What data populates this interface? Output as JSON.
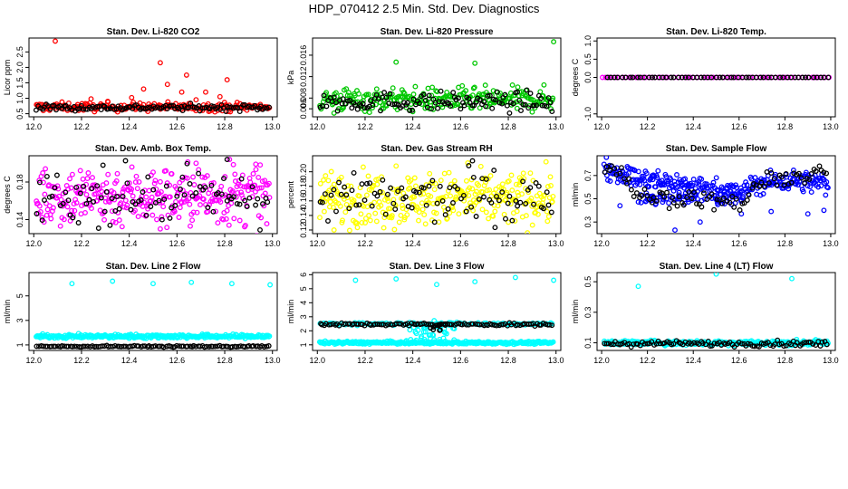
{
  "figure": {
    "title": "HDP_070412  2.5 Min. Std. Dev. Diagnostics"
  },
  "chart_data": [
    {
      "type": "scatter",
      "title": "Stan. Dev. Li-820 CO2",
      "ylabel": "Licor ppm",
      "xlim": [
        11.98,
        13.02
      ],
      "ylim": [
        0.4,
        2.95
      ],
      "xticks": [
        "12.0",
        "12.2",
        "12.4",
        "12.6",
        "12.8",
        "13.0"
      ],
      "xtick_values": [
        12.0,
        12.2,
        12.4,
        12.6,
        12.8,
        13.0
      ],
      "yticks": [
        "0.5",
        "1.0",
        "1.5",
        "2.0",
        "2.5"
      ],
      "ytick_values": [
        0.5,
        1.0,
        1.5,
        2.0,
        2.5
      ],
      "series": [
        {
          "name": "primary",
          "color": "#ff0000",
          "x_range": [
            12.01,
            12.99
          ],
          "n": 210,
          "center": 0.72,
          "spread": 0.07,
          "noise": 0.07,
          "outliers": [
            [
              12.09,
              2.85
            ],
            [
              12.41,
              1.02
            ],
            [
              12.46,
              1.3
            ],
            [
              12.53,
              2.15
            ],
            [
              12.56,
              1.45
            ],
            [
              12.62,
              1.2
            ],
            [
              12.64,
              1.75
            ],
            [
              12.68,
              0.95
            ],
            [
              12.72,
              1.2
            ],
            [
              12.78,
              1.05
            ],
            [
              12.81,
              1.6
            ],
            [
              12.24,
              0.98
            ],
            [
              12.31,
              0.9
            ]
          ]
        },
        {
          "name": "secondary",
          "color": "#000000",
          "x_range": [
            12.01,
            12.99
          ],
          "n": 120,
          "center": 0.7,
          "spread": 0.05,
          "noise": 0.05,
          "outliers": []
        }
      ]
    },
    {
      "type": "scatter",
      "title": "Stan. Dev. Li-820 Pressure",
      "ylabel": "kPa",
      "xlim": [
        11.98,
        13.02
      ],
      "ylim": [
        0.0045,
        0.0192
      ],
      "xticks": [
        "12.0",
        "12.2",
        "12.4",
        "12.6",
        "12.8",
        "13.0"
      ],
      "xtick_values": [
        12.0,
        12.2,
        12.4,
        12.6,
        12.8,
        13.0
      ],
      "yticks": [
        "0.006",
        "0.008",
        "0.012",
        "0.016"
      ],
      "ytick_values": [
        0.006,
        0.008,
        0.012,
        0.016
      ],
      "series": [
        {
          "name": "primary",
          "color": "#00c800",
          "x_range": [
            12.01,
            12.99
          ],
          "n": 260,
          "center": 0.0077,
          "spread": 0.0011,
          "noise": 0.0011,
          "outliers": [
            [
              12.33,
              0.0147
            ],
            [
              12.66,
              0.0145
            ],
            [
              12.99,
              0.0185
            ],
            [
              12.07,
              0.0052
            ]
          ]
        },
        {
          "name": "secondary",
          "color": "#000000",
          "x_range": [
            12.01,
            12.99
          ],
          "n": 120,
          "center": 0.0073,
          "spread": 0.0009,
          "noise": 0.0009,
          "outliers": []
        }
      ]
    },
    {
      "type": "scatter",
      "title": "Stan. Dev. Li-820 Temp.",
      "ylabel": "degrees C",
      "xlim": [
        11.98,
        13.02
      ],
      "ylim": [
        -1.08,
        1.08
      ],
      "xticks": [
        "12.0",
        "12.2",
        "12.4",
        "12.6",
        "12.8",
        "13.0"
      ],
      "xtick_values": [
        12.0,
        12.2,
        12.4,
        12.6,
        12.8,
        13.0
      ],
      "yticks": [
        "-1.0",
        "0.0",
        "0.5",
        "1.0"
      ],
      "ytick_values": [
        -1.0,
        0.0,
        0.5,
        1.0
      ],
      "series": [
        {
          "name": "primary",
          "color": "#ff00ff",
          "x_range": [
            12.0,
            13.0
          ],
          "n": 70,
          "center": 0.0,
          "spread": 0.0,
          "noise": 0.0,
          "outliers": []
        },
        {
          "name": "secondary",
          "color": "#000000",
          "x_range": [
            12.02,
            13.0
          ],
          "n": 60,
          "center": 0.0,
          "spread": 0.0,
          "noise": 0.0,
          "outliers": []
        }
      ]
    },
    {
      "type": "scatter",
      "title": "Stan. Dev. Amb. Box Temp.",
      "ylabel": "degrees C",
      "xlim": [
        11.98,
        13.02
      ],
      "ylim": [
        0.125,
        0.208
      ],
      "xticks": [
        "12.0",
        "12.2",
        "12.4",
        "12.6",
        "12.8",
        "13.0"
      ],
      "xtick_values": [
        12.0,
        12.2,
        12.4,
        12.6,
        12.8,
        13.0
      ],
      "yticks": [
        "0.14",
        "0.18"
      ],
      "ytick_values": [
        0.14,
        0.18
      ],
      "series": [
        {
          "name": "primary",
          "color": "#ff00ff",
          "x_range": [
            12.01,
            12.99
          ],
          "n": 330,
          "center": 0.165,
          "spread": 0.016,
          "noise": 0.016,
          "outliers": [
            [
              12.53,
              0.13
            ],
            [
              12.82,
              0.204
            ],
            [
              12.93,
              0.199
            ],
            [
              12.68,
              0.2
            ]
          ]
        },
        {
          "name": "secondary",
          "color": "#000000",
          "x_range": [
            12.01,
            12.99
          ],
          "n": 90,
          "center": 0.164,
          "spread": 0.014,
          "noise": 0.014,
          "outliers": [
            [
              12.29,
              0.198
            ],
            [
              12.81,
              0.204
            ]
          ]
        }
      ]
    },
    {
      "type": "scatter",
      "title": "Stan. Dev. Gas Stream RH",
      "ylabel": "percent",
      "xlim": [
        11.98,
        13.02
      ],
      "ylim": [
        0.115,
        0.222
      ],
      "xticks": [
        "12.0",
        "12.2",
        "12.4",
        "12.6",
        "12.8",
        "13.0"
      ],
      "xtick_values": [
        12.0,
        12.2,
        12.4,
        12.6,
        12.8,
        13.0
      ],
      "yticks": [
        "0.12",
        "0.14",
        "0.16",
        "0.18",
        "0.20"
      ],
      "ytick_values": [
        0.12,
        0.14,
        0.16,
        0.18,
        0.2
      ],
      "series": [
        {
          "name": "primary",
          "color": "#ffff00",
          "x_range": [
            12.01,
            12.99
          ],
          "n": 330,
          "center": 0.163,
          "spread": 0.018,
          "noise": 0.018,
          "outliers": [
            [
              12.07,
              0.12
            ],
            [
              12.33,
              0.208
            ],
            [
              12.63,
              0.212
            ]
          ]
        },
        {
          "name": "secondary",
          "color": "#000000",
          "x_range": [
            12.01,
            12.99
          ],
          "n": 90,
          "center": 0.163,
          "spread": 0.016,
          "noise": 0.016,
          "outliers": [
            [
              12.65,
              0.215
            ],
            [
              12.74,
              0.202
            ]
          ]
        }
      ]
    },
    {
      "type": "scatter",
      "title": "Stan. Dev. Sample Flow",
      "ylabel": "ml/min",
      "xlim": [
        11.98,
        13.02
      ],
      "ylim": [
        0.2,
        0.87
      ],
      "xticks": [
        "12.0",
        "12.2",
        "12.4",
        "12.6",
        "12.8",
        "13.0"
      ],
      "xtick_values": [
        12.0,
        12.2,
        12.4,
        12.6,
        12.8,
        13.0
      ],
      "yticks": [
        "0.3",
        "0.5",
        "0.7"
      ],
      "ytick_values": [
        0.3,
        0.5,
        0.7
      ],
      "series": [
        {
          "name": "primary",
          "color": "#0000ff",
          "x_range": [
            12.01,
            12.99
          ],
          "n": 300,
          "trend_x": [
            12.0,
            12.1,
            12.15,
            12.3,
            12.5,
            12.62,
            12.66,
            12.8,
            13.0
          ],
          "trend_y": [
            0.78,
            0.71,
            0.67,
            0.64,
            0.58,
            0.55,
            0.62,
            0.66,
            0.63
          ],
          "band_x": [
            12.15,
            12.62
          ],
          "band_y": [
            0.45,
            0.55
          ],
          "band_n": 70,
          "noise": 0.045,
          "outliers": [
            [
              12.32,
              0.23
            ],
            [
              12.43,
              0.3
            ],
            [
              12.61,
              0.37
            ],
            [
              12.74,
              0.39
            ],
            [
              12.9,
              0.37
            ],
            [
              12.97,
              0.4
            ],
            [
              12.08,
              0.44
            ]
          ]
        },
        {
          "name": "secondary",
          "color": "#000000",
          "x_range": [
            12.01,
            12.99
          ],
          "n": 90,
          "trend_x": [
            12.0,
            12.1,
            12.15,
            12.4,
            12.62,
            12.66,
            12.8,
            13.0
          ],
          "trend_y": [
            0.8,
            0.7,
            0.52,
            0.5,
            0.45,
            0.6,
            0.68,
            0.72
          ],
          "noise": 0.035,
          "outliers": []
        }
      ]
    },
    {
      "type": "scatter",
      "title": "Stan. Dev. Line 2 Flow",
      "ylabel": "ml/min",
      "xlim": [
        11.98,
        13.02
      ],
      "ylim": [
        0.55,
        6.9
      ],
      "xticks": [
        "12.0",
        "12.2",
        "12.4",
        "12.6",
        "12.8",
        "13.0"
      ],
      "xtick_values": [
        12.0,
        12.2,
        12.4,
        12.6,
        12.8,
        13.0
      ],
      "yticks": [
        "1",
        "3",
        "5"
      ],
      "ytick_values": [
        1,
        3,
        5
      ],
      "series": [
        {
          "name": "primary",
          "color": "#00ffff",
          "x_range": [
            12.01,
            12.99
          ],
          "n": 300,
          "center": 1.7,
          "spread": 0.08,
          "noise": 0.08,
          "outliers": [
            [
              12.16,
              6.0
            ],
            [
              12.33,
              6.2
            ],
            [
              12.5,
              6.0
            ],
            [
              12.66,
              6.1
            ],
            [
              12.83,
              6.0
            ],
            [
              12.99,
              5.9
            ]
          ]
        },
        {
          "name": "secondary",
          "color": "#000000",
          "x_range": [
            12.01,
            12.99
          ],
          "n": 110,
          "center": 0.88,
          "spread": 0.03,
          "noise": 0.03,
          "outliers": []
        }
      ]
    },
    {
      "type": "scatter",
      "title": "Stan. Dev. Line 3 Flow",
      "ylabel": "ml/min",
      "xlim": [
        11.98,
        13.02
      ],
      "ylim": [
        0.6,
        6.15
      ],
      "xticks": [
        "12.0",
        "12.2",
        "12.4",
        "12.6",
        "12.8",
        "13.0"
      ],
      "xtick_values": [
        12.0,
        12.2,
        12.4,
        12.6,
        12.8,
        13.0
      ],
      "yticks": [
        "1",
        "2",
        "3",
        "4",
        "5",
        "6"
      ],
      "ytick_values": [
        1,
        2,
        3,
        4,
        5,
        6
      ],
      "series": [
        {
          "name": "primary",
          "color": "#00ffff",
          "x_range": [
            12.01,
            12.99
          ],
          "n": 300,
          "center": 1.15,
          "spread": 0.05,
          "noise": 0.05,
          "band_x": [
            12.38,
            12.58
          ],
          "band_y": [
            1.3,
            2.8
          ],
          "band_n": 40,
          "extra_line": {
            "center": 2.5,
            "noise": 0.05,
            "n": 120
          },
          "outliers": [
            [
              12.16,
              5.6
            ],
            [
              12.33,
              5.7
            ],
            [
              12.5,
              5.3
            ],
            [
              12.66,
              5.5
            ],
            [
              12.83,
              5.8
            ],
            [
              12.99,
              5.6
            ]
          ]
        },
        {
          "name": "secondary",
          "color": "#000000",
          "x_range": [
            12.01,
            12.99
          ],
          "n": 110,
          "center": 2.45,
          "spread": 0.05,
          "noise": 0.05,
          "band_x": [
            12.45,
            12.55
          ],
          "band_y": [
            1.9,
            2.6
          ],
          "band_n": 8,
          "outliers": []
        }
      ]
    },
    {
      "type": "scatter",
      "title": "Stan. Dev. Line 4 (LT) Flow",
      "ylabel": "ml/min",
      "xlim": [
        11.98,
        13.02
      ],
      "ylim": [
        0.05,
        0.56
      ],
      "xticks": [
        "12.0",
        "12.2",
        "12.4",
        "12.6",
        "12.8",
        "13.0"
      ],
      "xtick_values": [
        12.0,
        12.2,
        12.4,
        12.6,
        12.8,
        13.0
      ],
      "yticks": [
        "0.1",
        "0.3",
        "0.5"
      ],
      "ytick_values": [
        0.1,
        0.3,
        0.5
      ],
      "series": [
        {
          "name": "primary",
          "color": "#00ffff",
          "x_range": [
            12.01,
            12.99
          ],
          "n": 280,
          "center": 0.1,
          "spread": 0.008,
          "noise": 0.008,
          "outliers": [
            [
              12.16,
              0.47
            ],
            [
              12.5,
              0.55
            ],
            [
              12.83,
              0.52
            ]
          ]
        },
        {
          "name": "secondary",
          "color": "#000000",
          "x_range": [
            12.01,
            12.99
          ],
          "n": 100,
          "center": 0.095,
          "spread": 0.009,
          "noise": 0.009,
          "outliers": []
        }
      ]
    }
  ]
}
